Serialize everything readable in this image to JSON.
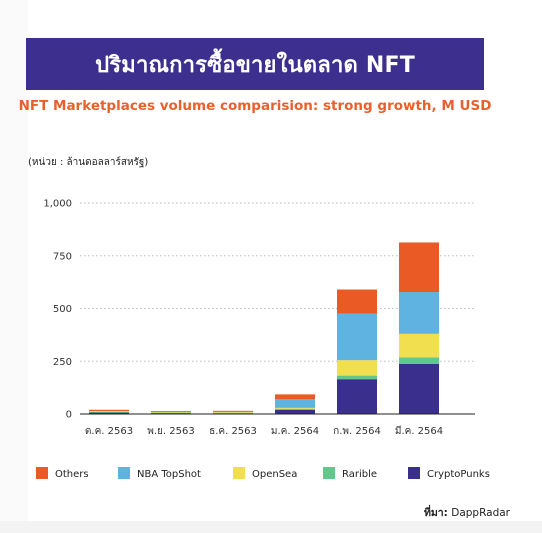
{
  "banner_title": "ปริมาณการซื้อขายในตลาด NFT",
  "subtitle": "NFT Marketplaces volume comparision: strong growth, M USD",
  "unit_label": "(หน่วย : ล้านดอลลาร์สหรัฐ)",
  "source": {
    "label": "ที่มา:",
    "value": "DappRadar"
  },
  "chart_data": {
    "type": "bar",
    "stacked": true,
    "categories": [
      "ต.ค. 2563",
      "พ.ย. 2563",
      "ธ.ค. 2563",
      "ม.ค. 2564",
      "ก.พ. 2564",
      "มี.ค. 2564"
    ],
    "ylim": [
      0,
      1000
    ],
    "yticks": [
      0,
      250,
      500,
      750,
      1000
    ],
    "ytick_labels": [
      "0",
      "250",
      "500",
      "750",
      "1,000"
    ],
    "grid": true,
    "legend_position": "bottom",
    "series": [
      {
        "name": "CryptoPunks",
        "color": "#3a2f8c",
        "values": [
          7,
          5,
          4,
          20,
          165,
          238
        ]
      },
      {
        "name": "Rarible",
        "color": "#5ec98b",
        "values": [
          3,
          2,
          2,
          5,
          17,
          30
        ]
      },
      {
        "name": "OpenSea",
        "color": "#f2df4f",
        "values": [
          4,
          3,
          4,
          4,
          73,
          112
        ]
      },
      {
        "name": "NBA TopShot",
        "color": "#5fb3e0",
        "values": [
          0,
          0,
          0,
          42,
          220,
          198
        ]
      },
      {
        "name": "Others",
        "color": "#e95a24",
        "values": [
          6,
          4,
          5,
          22,
          115,
          235
        ]
      }
    ],
    "legend_order": [
      "Others",
      "NBA TopShot",
      "OpenSea",
      "Rarible",
      "CryptoPunks"
    ]
  }
}
